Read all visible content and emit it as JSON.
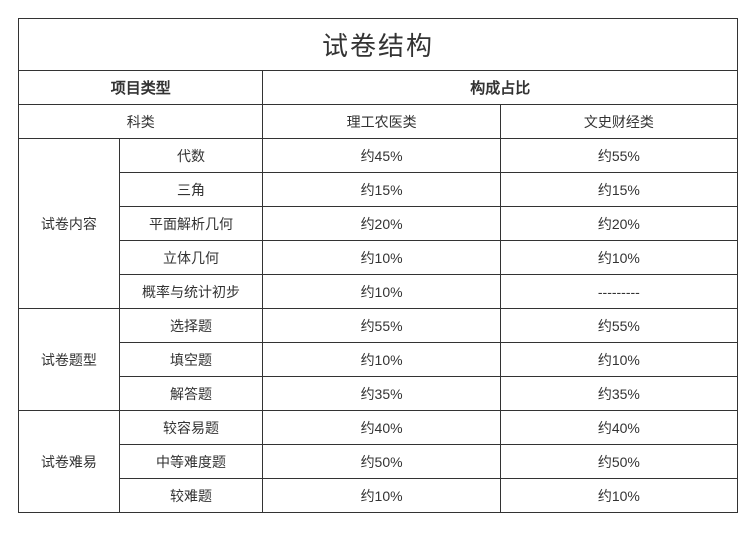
{
  "title": "试卷结构",
  "header": {
    "project_type": "项目类型",
    "composition_ratio": "构成占比"
  },
  "category_row": {
    "category": "科类",
    "science": "理工农医类",
    "liberal": "文史财经类"
  },
  "sections": [
    {
      "label": "试卷内容",
      "rows": [
        {
          "item": "代数",
          "science": "约45%",
          "liberal": "约55%"
        },
        {
          "item": "三角",
          "science": "约15%",
          "liberal": "约15%"
        },
        {
          "item": "平面解析几何",
          "science": "约20%",
          "liberal": "约20%"
        },
        {
          "item": "立体几何",
          "science": "约10%",
          "liberal": "约10%"
        },
        {
          "item": "概率与统计初步",
          "science": "约10%",
          "liberal": "---------"
        }
      ]
    },
    {
      "label": "试卷题型",
      "rows": [
        {
          "item": "选择题",
          "science": "约55%",
          "liberal": "约55%"
        },
        {
          "item": "填空题",
          "science": "约10%",
          "liberal": "约10%"
        },
        {
          "item": "解答题",
          "science": "约35%",
          "liberal": "约35%"
        }
      ]
    },
    {
      "label": "试卷难易",
      "rows": [
        {
          "item": "较容易题",
          "science": "约40%",
          "liberal": "约40%"
        },
        {
          "item": "中等难度题",
          "science": "约50%",
          "liberal": "约50%"
        },
        {
          "item": "较难题",
          "science": "约10%",
          "liberal": "约10%"
        }
      ]
    }
  ],
  "style": {
    "border_color": "#333333",
    "background_color": "#ffffff",
    "title_fontsize": 26,
    "cell_fontsize": 14,
    "header_fontsize": 15,
    "text_color": "#333333",
    "col_widths": [
      "14%",
      "20%",
      "33%",
      "33%"
    ]
  }
}
